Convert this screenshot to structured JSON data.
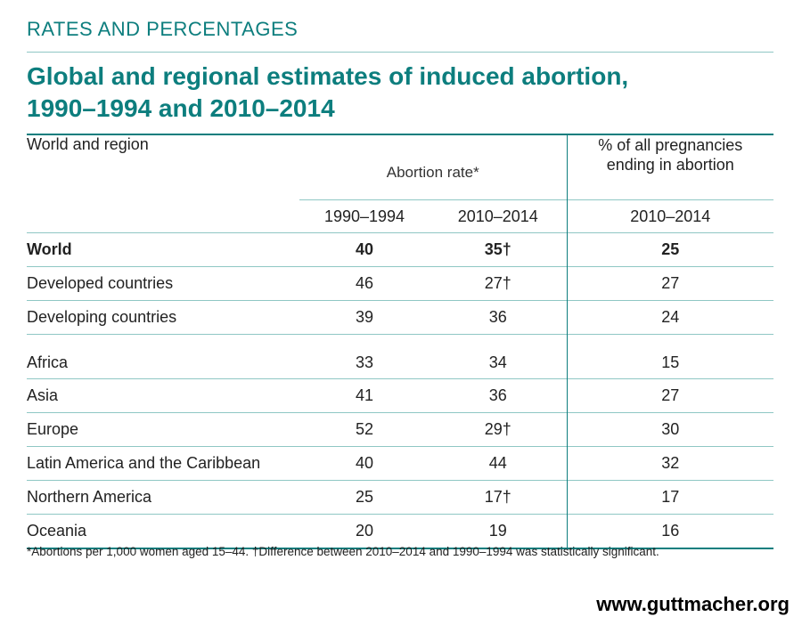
{
  "section_label": "RATES AND PERCENTAGES",
  "title_line1": "Global and regional estimates of induced abortion,",
  "title_line2": "1990–1994 and 2010–2014",
  "table": {
    "region_header": "World and region",
    "rate_header": "Abortion rate*",
    "pct_header_line1": "% of all pregnancies",
    "pct_header_line2": "ending in abortion",
    "col_1990": "1990–1994",
    "col_2010": "2010–2014",
    "col_pct_2010": "2010–2014",
    "rows": [
      {
        "name": "World",
        "rate_1990": "40",
        "rate_2010": "35†",
        "pct_2010": "25"
      },
      {
        "name": "Developed countries",
        "rate_1990": "46",
        "rate_2010": "27†",
        "pct_2010": "27"
      },
      {
        "name": "Developing countries",
        "rate_1990": "39",
        "rate_2010": "36",
        "pct_2010": "24"
      },
      {
        "name": "Africa",
        "rate_1990": "33",
        "rate_2010": "34",
        "pct_2010": "15"
      },
      {
        "name": "Asia",
        "rate_1990": "41",
        "rate_2010": "36",
        "pct_2010": "27"
      },
      {
        "name": "Europe",
        "rate_1990": "52",
        "rate_2010": "29†",
        "pct_2010": "30"
      },
      {
        "name": "Latin America and the Caribbean",
        "rate_1990": "40",
        "rate_2010": "44",
        "pct_2010": "32"
      },
      {
        "name": "Northern America",
        "rate_1990": "25",
        "rate_2010": "17†",
        "pct_2010": "17"
      },
      {
        "name": "Oceania",
        "rate_1990": "20",
        "rate_2010": "19",
        "pct_2010": "16"
      }
    ]
  },
  "footnote": "*Abortions per 1,000 women aged 15–44. †Difference between 2010–2014 and 1990–1994 was statistically significant.",
  "website": "www.guttmacher.org",
  "colors": {
    "accent": "#0d7e7e",
    "rule": "#8fc7c4",
    "text": "#222222"
  }
}
